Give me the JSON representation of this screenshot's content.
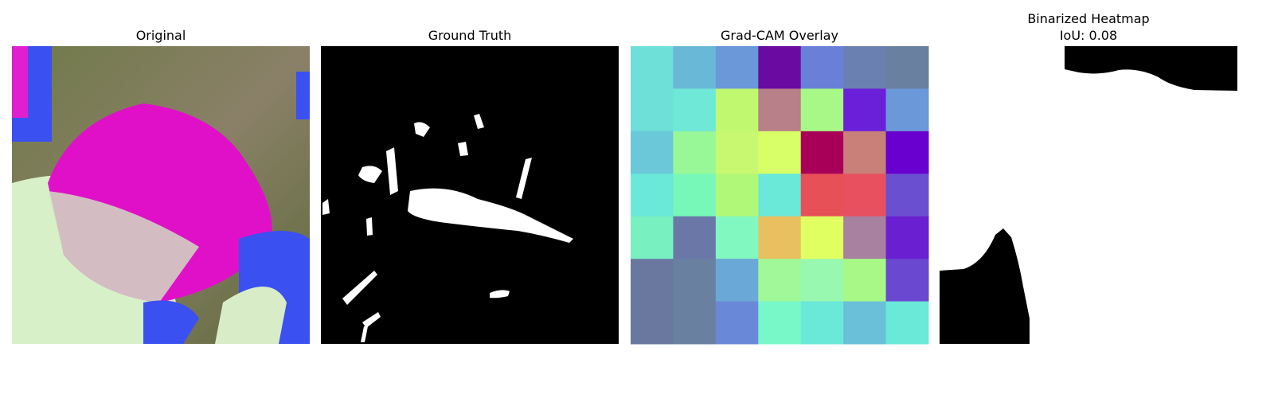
{
  "panels": [
    {
      "title": "Original"
    },
    {
      "title": "Ground Truth"
    },
    {
      "title": "Grad-CAM Overlay"
    },
    {
      "title": "Binarized Heatmap",
      "subtitle": "IoU: 0.08"
    }
  ]
}
